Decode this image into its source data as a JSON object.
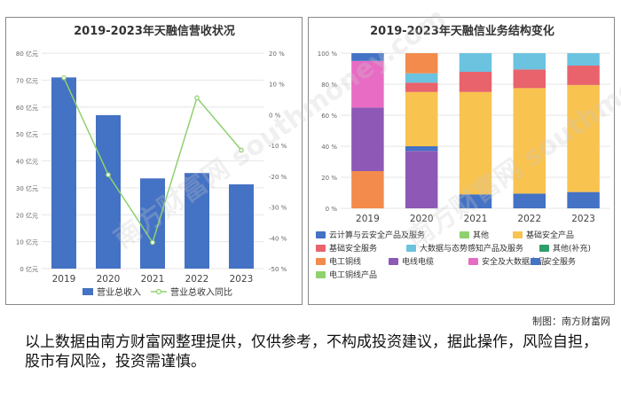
{
  "credit": "制图：南方财富网",
  "disclaimer": "以上数据由南方财富网整理提供，仅供参考，不构成投资建议，据此操作，风险自担，股市有风险，投资需谨慎。",
  "watermark": "南方财富网 southmoney.com",
  "colors": {
    "blue": "#4472C4",
    "green_line": "#8FD16F",
    "frame": "#888888"
  },
  "chart_data": [
    {
      "type": "bar",
      "title": "2019-2023年天融信营收状况",
      "categories": [
        "2019",
        "2020",
        "2021",
        "2022",
        "2023"
      ],
      "series": [
        {
          "name": "营业总收入",
          "type": "bar",
          "axis": "left",
          "color": "#4472C4",
          "values": [
            71,
            57,
            33.5,
            35.5,
            31.3
          ]
        },
        {
          "name": "营业总收入同比",
          "type": "line",
          "axis": "right",
          "color": "#8FD16F",
          "values": [
            12,
            -19.5,
            -41.5,
            5.5,
            -11.5
          ]
        }
      ],
      "y_left": {
        "ylim": [
          0,
          80
        ],
        "ticks": [
          "0 亿元",
          "10 亿元",
          "20 亿元",
          "30 亿元",
          "40 亿元",
          "50 亿元",
          "60 亿元",
          "70 亿元",
          "80 亿元"
        ]
      },
      "y_right": {
        "ylim": [
          -50,
          20
        ],
        "ticks": [
          "-50 %",
          "-40 %",
          "-30 %",
          "-20 %",
          "-10 %",
          "0 %",
          "10 %",
          "20 %"
        ]
      },
      "grid": true,
      "legend": "bottom"
    },
    {
      "type": "bar",
      "stacked": true,
      "title": "2019-2023年天融信业务结构变化",
      "categories": [
        "2019",
        "2020",
        "2021",
        "2022",
        "2023"
      ],
      "ylim": [
        0,
        100
      ],
      "yticks": [
        "0 %",
        "20 %",
        "40 %",
        "60 %",
        "80 %",
        "100 %"
      ],
      "series": [
        {
          "name": "电工铜线",
          "color": "#F28B4B",
          "values": [
            24,
            0,
            0,
            0,
            0
          ]
        },
        {
          "name": "电线电缆",
          "color": "#8E58B6",
          "values": [
            41,
            37,
            0,
            0,
            0
          ]
        },
        {
          "name": "安全及大数据产品",
          "color": "#E86BC4",
          "values": [
            30,
            0,
            0,
            0,
            0
          ]
        },
        {
          "name": "安全服务",
          "color": "#4472C4",
          "values": [
            0,
            3,
            9,
            9.5,
            10.5
          ]
        },
        {
          "name": "基础安全产品",
          "color": "#F8C34F",
          "values": [
            0,
            35,
            66,
            68,
            69
          ]
        },
        {
          "name": "基础安全服务",
          "color": "#E8636B",
          "values": [
            0,
            6,
            13,
            12,
            12.5
          ]
        },
        {
          "name": "大数据与态势感知产品及服务",
          "color": "#6BC3E0",
          "values": [
            0,
            6,
            12,
            10.5,
            8
          ]
        },
        {
          "name": "电工铜线",
          "color": "#F28B4B",
          "values": [
            0,
            13,
            0,
            0,
            0
          ]
        },
        {
          "name": "云计算与云安全产品及服务",
          "color": "#4472C4",
          "values": [
            5,
            0,
            0,
            0,
            0
          ]
        }
      ],
      "legend_items": [
        {
          "name": "云计算与云安全产品及服务",
          "color": "#4472C4"
        },
        {
          "name": "其他",
          "color": "#8FD16F"
        },
        {
          "name": "基础安全产品",
          "color": "#F8C34F"
        },
        {
          "name": "基础安全服务",
          "color": "#E8636B"
        },
        {
          "name": "大数据与态势感知产品及服务",
          "color": "#6BC3E0"
        },
        {
          "name": "其他(补充)",
          "color": "#2E9E6A"
        },
        {
          "name": "电工铜线",
          "color": "#F28B4B"
        },
        {
          "name": "电线电缆",
          "color": "#8E58B6"
        },
        {
          "name": "安全及大数据产品",
          "color": "#E86BC4"
        },
        {
          "name": "安全服务",
          "color": "#4472C4"
        },
        {
          "name": "电工铜线产品",
          "color": "#8FD16F"
        }
      ],
      "grid": true,
      "legend": "bottom"
    }
  ]
}
